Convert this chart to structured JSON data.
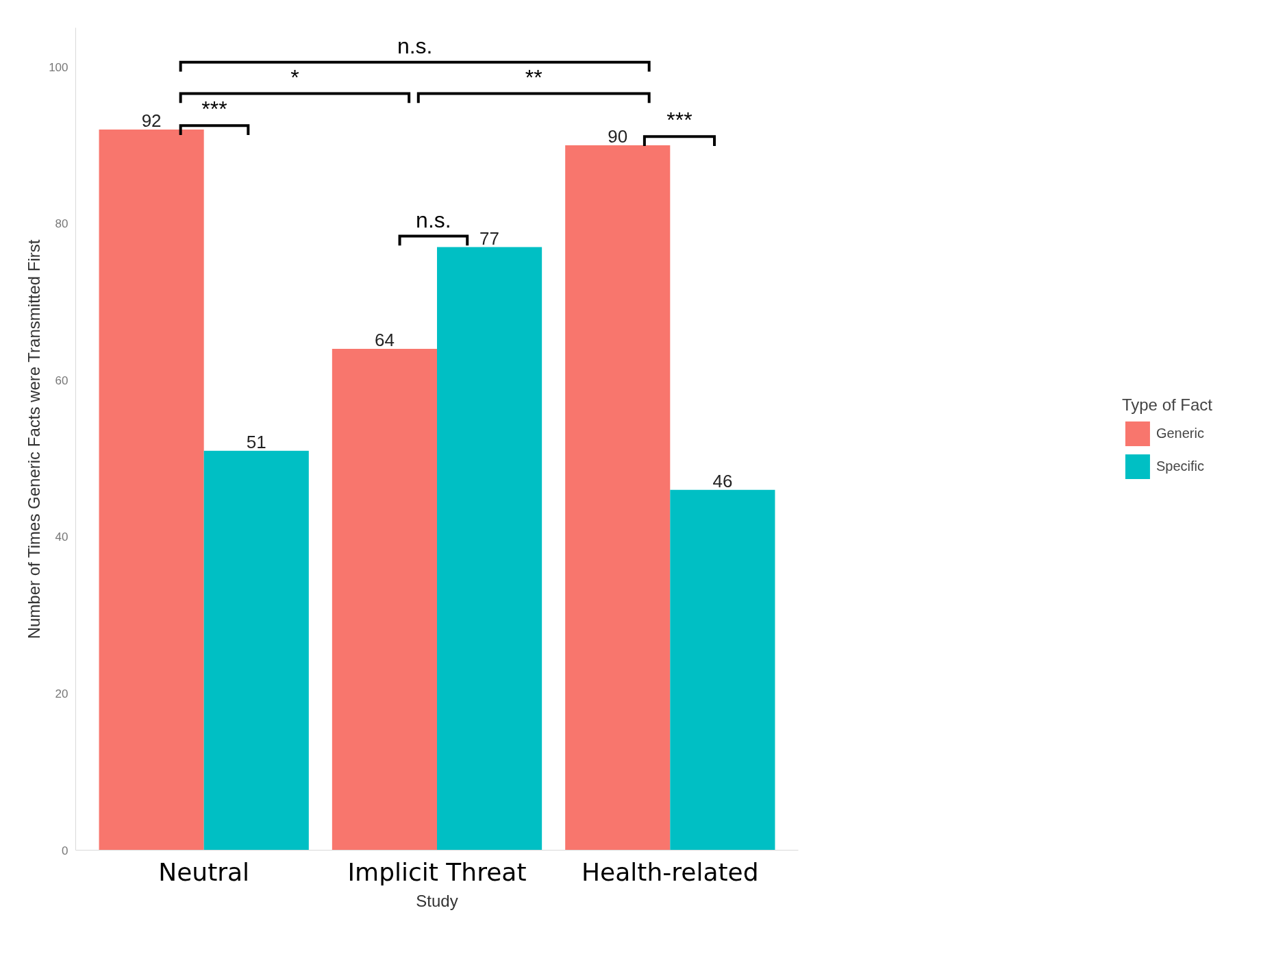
{
  "chart_data": {
    "type": "bar",
    "xlabel": "Study",
    "ylabel": "Number of Times Generic Facts were Transmitted First",
    "legend_title": "Type of Fact",
    "categories": [
      "Neutral",
      "Implicit Threat",
      "Health-related"
    ],
    "series": [
      {
        "name": "Generic",
        "color": "#f8766d",
        "values": [
          92,
          64,
          90
        ]
      },
      {
        "name": "Specific",
        "color": "#00bfc4",
        "values": [
          51,
          77,
          46
        ]
      }
    ],
    "ylim": [
      0,
      105
    ],
    "yticks": [
      0,
      20,
      40,
      60,
      80,
      100
    ],
    "data_labels": true,
    "legend": "right",
    "grid": false,
    "annotations": [
      "n.s.",
      "*",
      "**",
      "***",
      "n.s.",
      "***"
    ]
  }
}
